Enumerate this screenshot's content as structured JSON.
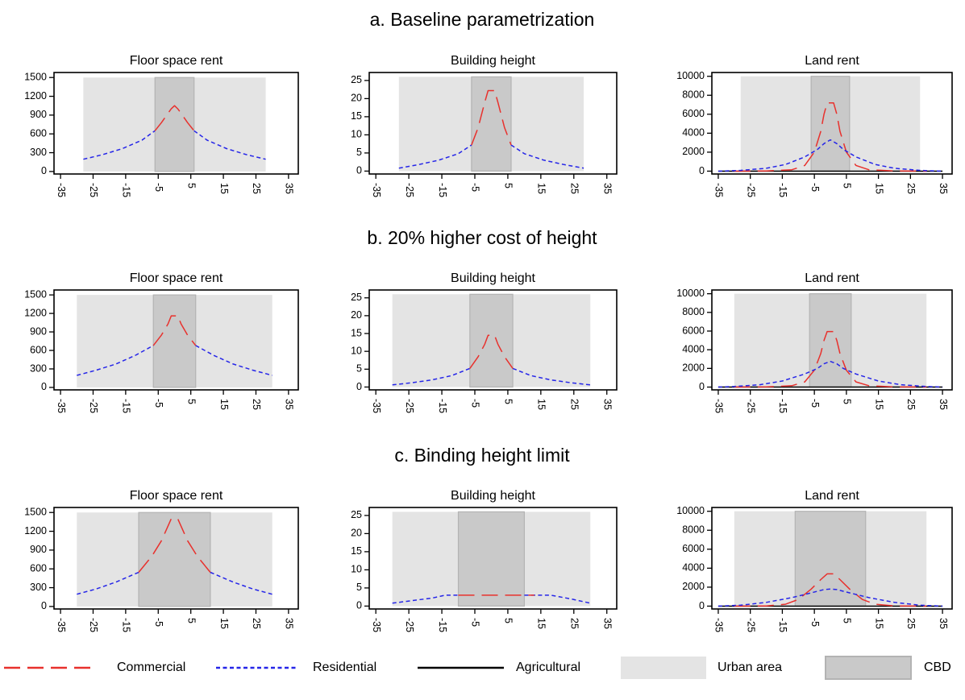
{
  "colors": {
    "commercial": "#e8312d",
    "residential": "#2525e8",
    "agricultural": "#000000",
    "urban_area": "#e4e4e4",
    "cbd": "#c9c9c9",
    "cbd_edge": "#b3b3b3"
  },
  "legend": [
    {
      "key": "commercial",
      "label": "Commercial",
      "style": "long-dash"
    },
    {
      "key": "residential",
      "label": "Residential",
      "style": "short-dash"
    },
    {
      "key": "agricultural",
      "label": "Agricultural",
      "style": "solid"
    },
    {
      "key": "urban_area",
      "label": "Urban area",
      "style": "patch"
    },
    {
      "key": "cbd",
      "label": "CBD",
      "style": "patch"
    }
  ],
  "chart_data": [
    {
      "type": "line",
      "row_title": "a. Baseline parametrization",
      "title": "Floor space rent",
      "xlim": [
        -37,
        38
      ],
      "xticks": [
        -35,
        -25,
        -15,
        -5,
        5,
        15,
        25,
        35
      ],
      "ylim": [
        -40,
        1580
      ],
      "yticks": [
        0,
        300,
        600,
        900,
        1200,
        1500
      ],
      "urban_area": [
        -28,
        28
      ],
      "cbd": [
        -6,
        6
      ],
      "shade_top": 1500,
      "series": [
        {
          "name": "Residential",
          "key": "residential",
          "x": [
            -28,
            -22,
            -16,
            -10,
            -6
          ],
          "y": [
            195,
            270,
            365,
            500,
            650
          ]
        },
        {
          "name": "Residential",
          "key": "residential",
          "x": [
            6,
            10,
            16,
            22,
            28
          ],
          "y": [
            650,
            500,
            365,
            270,
            195
          ]
        },
        {
          "name": "Commercial",
          "key": "commercial",
          "x": [
            -6,
            -4,
            -2,
            -1,
            0,
            1,
            2,
            4,
            6
          ],
          "y": [
            650,
            780,
            930,
            1000,
            1050,
            1000,
            930,
            780,
            650
          ]
        }
      ]
    },
    {
      "type": "line",
      "row_title": "a. Baseline parametrization",
      "title": "Building height",
      "xlim": [
        -37,
        38
      ],
      "xticks": [
        -35,
        -25,
        -15,
        -5,
        5,
        15,
        25,
        35
      ],
      "ylim": [
        -0.8,
        27.2
      ],
      "yticks": [
        0,
        5,
        10,
        15,
        20,
        25
      ],
      "urban_area": [
        -28,
        28
      ],
      "cbd": [
        -6,
        6
      ],
      "shade_top": 26,
      "series": [
        {
          "name": "Residential",
          "key": "residential",
          "x": [
            -28,
            -22,
            -16,
            -10,
            -6
          ],
          "y": [
            0.8,
            1.8,
            3.0,
            4.8,
            7.2
          ]
        },
        {
          "name": "Residential",
          "key": "residential",
          "x": [
            6,
            10,
            16,
            22,
            28
          ],
          "y": [
            7.2,
            4.8,
            3.0,
            1.8,
            0.8
          ]
        },
        {
          "name": "Commercial",
          "key": "commercial",
          "x": [
            -6,
            -4,
            -2,
            -1,
            1,
            2,
            4,
            6
          ],
          "y": [
            7.2,
            12,
            19,
            22.2,
            22.2,
            19,
            12,
            7.2
          ]
        }
      ]
    },
    {
      "type": "line",
      "row_title": "a. Baseline parametrization",
      "title": "Land rent",
      "xlim": [
        -37,
        38
      ],
      "xticks": [
        -35,
        -25,
        -15,
        -5,
        5,
        15,
        25,
        35
      ],
      "ylim": [
        -300,
        10400
      ],
      "yticks": [
        0,
        2000,
        4000,
        6000,
        8000,
        10000
      ],
      "urban_area": [
        -28,
        28
      ],
      "cbd": [
        -6,
        6
      ],
      "shade_top": 10000,
      "series": [
        {
          "name": "Agricultural",
          "key": "agricultural",
          "x": [
            -35,
            35
          ],
          "y": [
            0,
            0
          ]
        },
        {
          "name": "Commercial",
          "key": "commercial",
          "x": [
            -30,
            -20,
            -12,
            -8,
            -5,
            -3,
            -2,
            -1,
            1,
            2,
            3,
            5,
            8,
            12,
            20,
            30
          ],
          "y": [
            0,
            20,
            150,
            600,
            2000,
            4200,
            6000,
            7200,
            7200,
            6000,
            4200,
            2000,
            600,
            150,
            20,
            0
          ]
        },
        {
          "name": "Residential",
          "key": "residential",
          "x": [
            -35,
            -28,
            -20,
            -14,
            -8,
            -4,
            -2,
            0,
            2,
            4,
            8,
            14,
            20,
            28,
            35
          ],
          "y": [
            0,
            80,
            300,
            700,
            1500,
            2300,
            2900,
            3300,
            2900,
            2300,
            1500,
            700,
            300,
            80,
            0
          ]
        }
      ]
    },
    {
      "type": "line",
      "row_title": "b. 20% higher cost of height",
      "title": "Floor space rent",
      "xlim": [
        -37,
        38
      ],
      "xticks": [
        -35,
        -25,
        -15,
        -5,
        5,
        15,
        25,
        35
      ],
      "ylim": [
        -40,
        1580
      ],
      "yticks": [
        0,
        300,
        600,
        900,
        1200,
        1500
      ],
      "urban_area": [
        -30,
        30
      ],
      "cbd": [
        -6.5,
        6.5
      ],
      "shade_top": 1500,
      "series": [
        {
          "name": "Residential",
          "key": "residential",
          "x": [
            -30,
            -24,
            -18,
            -12,
            -6.5
          ],
          "y": [
            195,
            280,
            380,
            520,
            680
          ]
        },
        {
          "name": "Residential",
          "key": "residential",
          "x": [
            6.5,
            12,
            18,
            24,
            30
          ],
          "y": [
            680,
            520,
            380,
            280,
            195
          ]
        },
        {
          "name": "Commercial",
          "key": "commercial",
          "x": [
            -6.5,
            -4,
            -2,
            -1,
            1,
            2,
            4,
            6.5
          ],
          "y": [
            680,
            850,
            1030,
            1160,
            1160,
            1030,
            850,
            680
          ]
        }
      ]
    },
    {
      "type": "line",
      "row_title": "b. 20% higher cost of height",
      "title": "Building height",
      "xlim": [
        -37,
        38
      ],
      "xticks": [
        -35,
        -25,
        -15,
        -5,
        5,
        15,
        25,
        35
      ],
      "ylim": [
        -0.8,
        27.2
      ],
      "yticks": [
        0,
        5,
        10,
        15,
        20,
        25
      ],
      "urban_area": [
        -30,
        30
      ],
      "cbd": [
        -6.5,
        6.5
      ],
      "shade_top": 26,
      "series": [
        {
          "name": "Residential",
          "key": "residential",
          "x": [
            -30,
            -24,
            -18,
            -12,
            -6.5
          ],
          "y": [
            0.6,
            1.2,
            2.0,
            3.2,
            5.2
          ]
        },
        {
          "name": "Residential",
          "key": "residential",
          "x": [
            6.5,
            12,
            18,
            24,
            30
          ],
          "y": [
            5.2,
            3.2,
            2.0,
            1.2,
            0.6
          ]
        },
        {
          "name": "Commercial",
          "key": "commercial",
          "x": [
            -6.5,
            -4,
            -2,
            -1,
            1,
            2,
            4,
            6.5
          ],
          "y": [
            5.2,
            8.5,
            12,
            14.5,
            14.5,
            12,
            8.5,
            5.2
          ]
        }
      ]
    },
    {
      "type": "line",
      "row_title": "b. 20% higher cost of height",
      "title": "Land rent",
      "xlim": [
        -37,
        38
      ],
      "xticks": [
        -35,
        -25,
        -15,
        -5,
        5,
        15,
        25,
        35
      ],
      "ylim": [
        -300,
        10400
      ],
      "yticks": [
        0,
        2000,
        4000,
        6000,
        8000,
        10000
      ],
      "urban_area": [
        -30,
        30
      ],
      "cbd": [
        -6.5,
        6.5
      ],
      "shade_top": 10000,
      "series": [
        {
          "name": "Agricultural",
          "key": "agricultural",
          "x": [
            -35,
            35
          ],
          "y": [
            0,
            0
          ]
        },
        {
          "name": "Commercial",
          "key": "commercial",
          "x": [
            -30,
            -20,
            -12,
            -8,
            -5,
            -3,
            -2,
            -1,
            1,
            2,
            3,
            5,
            8,
            12,
            20,
            30
          ],
          "y": [
            0,
            20,
            150,
            550,
            1800,
            3600,
            5000,
            5950,
            5950,
            5000,
            3600,
            1800,
            550,
            150,
            20,
            0
          ]
        },
        {
          "name": "Residential",
          "key": "residential",
          "x": [
            -35,
            -30,
            -22,
            -15,
            -8,
            -4,
            -2,
            0,
            2,
            4,
            8,
            15,
            22,
            30,
            35
          ],
          "y": [
            0,
            60,
            250,
            650,
            1400,
            2000,
            2500,
            2750,
            2500,
            2000,
            1400,
            650,
            250,
            60,
            0
          ]
        }
      ]
    },
    {
      "type": "line",
      "row_title": "c. Binding height limit",
      "title": "Floor space rent",
      "xlim": [
        -37,
        38
      ],
      "xticks": [
        -35,
        -25,
        -15,
        -5,
        5,
        15,
        25,
        35
      ],
      "ylim": [
        -40,
        1580
      ],
      "yticks": [
        0,
        300,
        600,
        900,
        1200,
        1500
      ],
      "urban_area": [
        -30,
        30
      ],
      "cbd": [
        -11,
        11
      ],
      "shade_top": 1500,
      "series": [
        {
          "name": "Residential",
          "key": "residential",
          "x": [
            -30,
            -24,
            -18,
            -11
          ],
          "y": [
            195,
            280,
            390,
            545
          ]
        },
        {
          "name": "Residential",
          "key": "residential",
          "x": [
            11,
            18,
            24,
            30
          ],
          "y": [
            545,
            390,
            280,
            195
          ]
        },
        {
          "name": "Commercial",
          "key": "commercial",
          "x": [
            -11,
            -7,
            -4,
            -1,
            1,
            4,
            7,
            11
          ],
          "y": [
            545,
            800,
            1050,
            1400,
            1400,
            1050,
            800,
            545
          ]
        }
      ]
    },
    {
      "type": "line",
      "row_title": "c. Binding height limit",
      "title": "Building height",
      "xlim": [
        -37,
        38
      ],
      "xticks": [
        -35,
        -25,
        -15,
        -5,
        5,
        15,
        25,
        35
      ],
      "ylim": [
        -0.8,
        27.2
      ],
      "yticks": [
        0,
        5,
        10,
        15,
        20,
        25
      ],
      "urban_area": [
        -30,
        30
      ],
      "cbd": [
        -10,
        10
      ],
      "shade_top": 26,
      "series": [
        {
          "name": "Residential",
          "key": "residential",
          "x": [
            -30,
            -24,
            -18,
            -14,
            -10
          ],
          "y": [
            0.8,
            1.5,
            2.2,
            3.0,
            3.0
          ]
        },
        {
          "name": "Residential",
          "key": "residential",
          "x": [
            10,
            18,
            24,
            30
          ],
          "y": [
            3.0,
            3.0,
            2.0,
            0.8
          ]
        },
        {
          "name": "Commercial",
          "key": "commercial",
          "x": [
            -10,
            13
          ],
          "y": [
            3.0,
            3.0
          ]
        }
      ]
    },
    {
      "type": "line",
      "row_title": "c. Binding height limit",
      "title": "Land rent",
      "xlim": [
        -37,
        38
      ],
      "xticks": [
        -35,
        -25,
        -15,
        -5,
        5,
        15,
        25,
        35
      ],
      "ylim": [
        -300,
        10400
      ],
      "yticks": [
        0,
        2000,
        4000,
        6000,
        8000,
        10000
      ],
      "urban_area": [
        -30,
        30
      ],
      "cbd": [
        -11,
        11
      ],
      "shade_top": 10000,
      "series": [
        {
          "name": "Agricultural",
          "key": "agricultural",
          "x": [
            -35,
            35
          ],
          "y": [
            0,
            0
          ]
        },
        {
          "name": "Commercial",
          "key": "commercial",
          "x": [
            -30,
            -20,
            -14,
            -10,
            -6,
            -3,
            -1,
            1,
            3,
            6,
            10,
            14,
            20,
            30
          ],
          "y": [
            0,
            20,
            200,
            700,
            1800,
            2800,
            3400,
            3400,
            2800,
            1800,
            700,
            200,
            20,
            0
          ]
        },
        {
          "name": "Residential",
          "key": "residential",
          "x": [
            -35,
            -28,
            -20,
            -12,
            -6,
            -2,
            0,
            2,
            6,
            12,
            20,
            28,
            35
          ],
          "y": [
            0,
            100,
            400,
            900,
            1400,
            1750,
            1800,
            1750,
            1400,
            900,
            400,
            100,
            0
          ]
        }
      ]
    }
  ]
}
